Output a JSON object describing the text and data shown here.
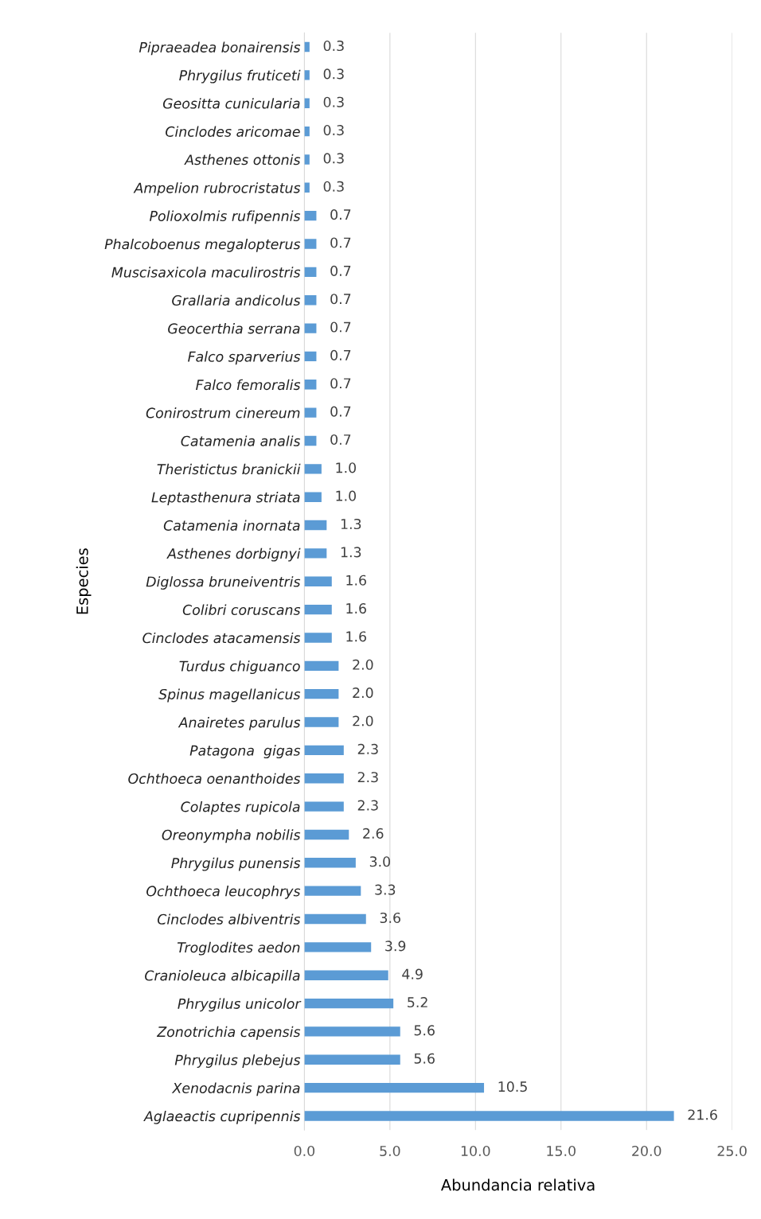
{
  "chart_data": {
    "type": "bar",
    "orientation": "horizontal",
    "xlabel": "Abundancia relativa",
    "ylabel": "Especies",
    "categories": [
      "Pipraeadea bonairensis",
      "Phrygilus fruticeti",
      "Geositta cunicularia",
      "Cinclodes aricomae",
      "Asthenes ottonis",
      "Ampelion rubrocristatus",
      "Polioxolmis rufipennis",
      "Phalcoboenus megalopterus",
      "Muscisaxicola maculirostris",
      "Grallaria andicolus",
      "Geocerthia serrana",
      "Falco sparverius",
      "Falco femoralis",
      "Conirostrum cinereum",
      "Catamenia analis",
      "Theristictus branickii",
      "Leptasthenura striata",
      "Catamenia inornata",
      "Asthenes dorbignyi",
      "Diglossa bruneiventris",
      "Colibri coruscans",
      "Cinclodes atacamensis",
      "Turdus chiguanco",
      "Spinus magellanicus",
      "Anairetes parulus",
      "Patagona  gigas",
      "Ochthoeca oenanthoides",
      "Colaptes rupicola",
      "Oreonympha nobilis",
      "Phrygilus punensis",
      "Ochthoeca leucophrys",
      "Cinclodes albiventris",
      "Troglodites aedon",
      "Cranioleuca albicapilla",
      "Phrygilus unicolor",
      "Zonotrichia capensis",
      "Phrygilus plebejus",
      "Xenodacnis parina",
      "Aglaeactis cupripennis"
    ],
    "values": [
      0.3,
      0.3,
      0.3,
      0.3,
      0.3,
      0.3,
      0.7,
      0.7,
      0.7,
      0.7,
      0.7,
      0.7,
      0.7,
      0.7,
      0.7,
      1.0,
      1.0,
      1.3,
      1.3,
      1.6,
      1.6,
      1.6,
      2.0,
      2.0,
      2.0,
      2.3,
      2.3,
      2.3,
      2.6,
      3.0,
      3.3,
      3.6,
      3.9,
      4.9,
      5.2,
      5.6,
      5.6,
      10.5,
      21.6
    ],
    "value_labels": [
      "0.3",
      "0.3",
      "0.3",
      "0.3",
      "0.3",
      "0.3",
      "0.7",
      "0.7",
      "0.7",
      "0.7",
      "0.7",
      "0.7",
      "0.7",
      "0.7",
      "0.7",
      "1.0",
      "1.0",
      "1.3",
      "1.3",
      "1.6",
      "1.6",
      "1.6",
      "2.0",
      "2.0",
      "2.0",
      "2.3",
      "2.3",
      "2.3",
      "2.6",
      "3.0",
      "3.3",
      "3.6",
      "3.9",
      "4.9",
      "5.2",
      "5.6",
      "5.6",
      "10.5",
      "21.6"
    ],
    "color": "#5b9bd5",
    "xlim": [
      0,
      25
    ],
    "xticks": [
      {
        "value": 0,
        "label": "0.0"
      },
      {
        "value": 5,
        "label": "5.0"
      },
      {
        "value": 10,
        "label": "10.0"
      },
      {
        "value": 15,
        "label": "15.0"
      },
      {
        "value": 20,
        "label": "20.0"
      },
      {
        "value": 25,
        "label": "25.0"
      }
    ],
    "grid": "x",
    "legend": false
  }
}
